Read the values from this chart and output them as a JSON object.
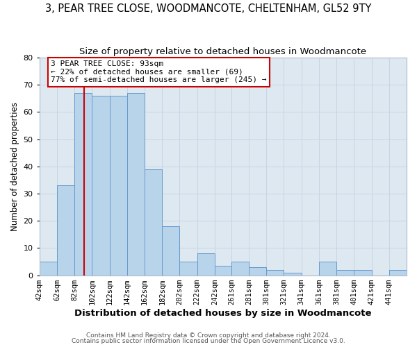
{
  "title1": "3, PEAR TREE CLOSE, WOODMANCOTE, CHELTENHAM, GL52 9TY",
  "title2": "Size of property relative to detached houses in Woodmancote",
  "xlabel": "Distribution of detached houses by size in Woodmancote",
  "ylabel": "Number of detached properties",
  "bin_edges": [
    42,
    62,
    82,
    102,
    122,
    142,
    162,
    182,
    202,
    222,
    242,
    261,
    281,
    301,
    321,
    341,
    361,
    381,
    401,
    421,
    441,
    461
  ],
  "bar_heights": [
    5,
    33,
    67,
    66,
    66,
    67,
    39,
    18,
    5,
    8,
    3.5,
    5,
    3,
    2,
    1,
    0,
    5,
    2,
    2,
    0,
    2
  ],
  "bar_color": "#b8d4eb",
  "bar_edge_color": "#6699cc",
  "property_size": 93,
  "vline_color": "#cc0000",
  "annotation_text": "3 PEAR TREE CLOSE: 93sqm\n← 22% of detached houses are smaller (69)\n77% of semi-detached houses are larger (245) →",
  "annotation_box_edgecolor": "#cc0000",
  "annotation_box_facecolor": "#ffffff",
  "ylim": [
    0,
    80
  ],
  "xlim": [
    42,
    461
  ],
  "grid_color": "#c8d4e4",
  "plot_bg_color": "#dde8f0",
  "fig_bg_color": "#ffffff",
  "footer1": "Contains HM Land Registry data © Crown copyright and database right 2024.",
  "footer2": "Contains public sector information licensed under the Open Government Licence v3.0.",
  "title1_fontsize": 10.5,
  "title2_fontsize": 9.5,
  "tick_fontsize": 7.5,
  "ylabel_fontsize": 8.5,
  "xlabel_fontsize": 9.5,
  "annotation_fontsize": 8.0,
  "footer_fontsize": 6.5
}
